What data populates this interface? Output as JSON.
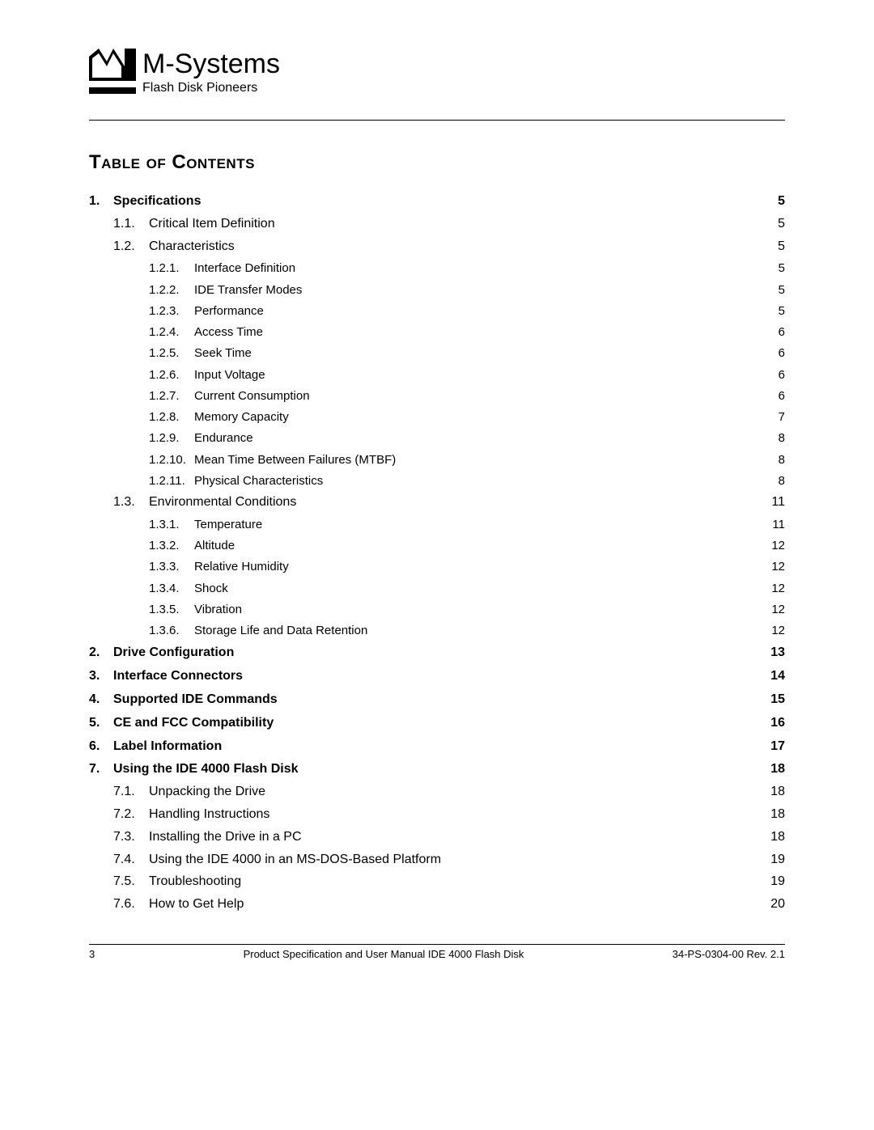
{
  "logo": {
    "name": "M-Systems",
    "tagline": "Flash Disk Pioneers"
  },
  "toc_title": "Table of Contents",
  "toc": [
    {
      "level": 1,
      "num": "1.",
      "label": "Specifications",
      "page": "5"
    },
    {
      "level": 2,
      "num": "1.1.",
      "label": "Critical Item Definition",
      "page": "5"
    },
    {
      "level": 2,
      "num": "1.2.",
      "label": "Characteristics",
      "page": "5"
    },
    {
      "level": 3,
      "num": "1.2.1.",
      "label": "Interface Definition",
      "page": "5"
    },
    {
      "level": 3,
      "num": "1.2.2.",
      "label": "IDE Transfer Modes",
      "page": "5"
    },
    {
      "level": 3,
      "num": "1.2.3.",
      "label": "Performance",
      "page": "5"
    },
    {
      "level": 3,
      "num": "1.2.4.",
      "label": "Access Time",
      "page": "6"
    },
    {
      "level": 3,
      "num": "1.2.5.",
      "label": "Seek Time",
      "page": "6"
    },
    {
      "level": 3,
      "num": "1.2.6.",
      "label": "Input Voltage",
      "page": "6"
    },
    {
      "level": 3,
      "num": "1.2.7.",
      "label": "Current Consumption",
      "page": "6"
    },
    {
      "level": 3,
      "num": "1.2.8.",
      "label": "Memory Capacity",
      "page": "7"
    },
    {
      "level": 3,
      "num": "1.2.9.",
      "label": "Endurance",
      "page": "8"
    },
    {
      "level": 3,
      "num": "1.2.10.",
      "label": "Mean Time Between Failures (MTBF)",
      "page": "8"
    },
    {
      "level": 3,
      "num": "1.2.11.",
      "label": "Physical Characteristics",
      "page": "8"
    },
    {
      "level": 2,
      "num": "1.3.",
      "label": "Environmental Conditions",
      "page": "11"
    },
    {
      "level": 3,
      "num": "1.3.1.",
      "label": "Temperature",
      "page": "11"
    },
    {
      "level": 3,
      "num": "1.3.2.",
      "label": "Altitude",
      "page": "12"
    },
    {
      "level": 3,
      "num": "1.3.3.",
      "label": "Relative Humidity",
      "page": "12"
    },
    {
      "level": 3,
      "num": "1.3.4.",
      "label": "Shock",
      "page": "12"
    },
    {
      "level": 3,
      "num": "1.3.5.",
      "label": "Vibration",
      "page": "12"
    },
    {
      "level": 3,
      "num": "1.3.6.",
      "label": "Storage Life and Data Retention",
      "page": "12"
    },
    {
      "level": 1,
      "num": "2.",
      "label": "Drive Configuration",
      "page": "13"
    },
    {
      "level": 1,
      "num": "3.",
      "label": "Interface Connectors",
      "page": "14"
    },
    {
      "level": 1,
      "num": "4.",
      "label": "Supported IDE Commands",
      "page": "15"
    },
    {
      "level": 1,
      "num": "5.",
      "label": "CE and FCC Compatibility",
      "page": "16"
    },
    {
      "level": 1,
      "num": "6.",
      "label": "Label Information",
      "page": "17"
    },
    {
      "level": 1,
      "num": "7.",
      "label": "Using the IDE 4000 Flash Disk",
      "page": "18"
    },
    {
      "level": 2,
      "num": "7.1.",
      "label": "Unpacking the Drive",
      "page": "18"
    },
    {
      "level": 2,
      "num": "7.2.",
      "label": "Handling Instructions",
      "page": "18"
    },
    {
      "level": 2,
      "num": "7.3.",
      "label": "Installing the Drive in a PC",
      "page": "18"
    },
    {
      "level": 2,
      "num": "7.4.",
      "label": "Using the IDE 4000 in an MS-DOS-Based Platform",
      "page": "19"
    },
    {
      "level": 2,
      "num": "7.5.",
      "label": "Troubleshooting",
      "page": "19"
    },
    {
      "level": 2,
      "num": "7.6.",
      "label": "How to Get Help",
      "page": "20"
    }
  ],
  "footer": {
    "page_number": "3",
    "doc_title": "Product Specification and User Manual IDE 4000 Flash Disk",
    "doc_rev": "34-PS-0304-00 Rev. 2.1"
  },
  "style": {
    "text_color": "#000000",
    "background_color": "#ffffff",
    "title_fontsize": 24,
    "l1_fontsize": 16,
    "l3_fontsize": 15,
    "footer_fontsize": 13
  }
}
